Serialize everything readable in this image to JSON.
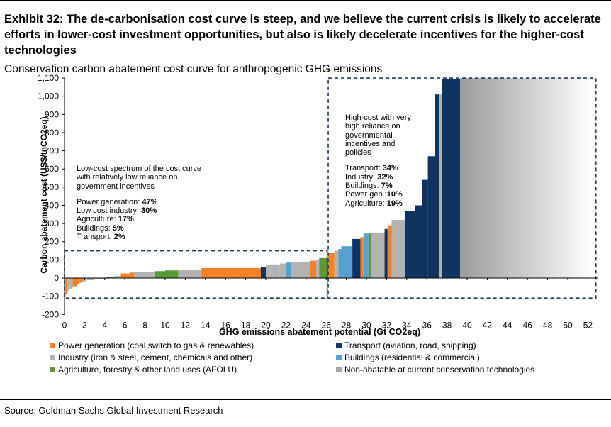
{
  "title": "Exhibit 32: The de-carbonisation cost curve is steep, and we believe the current crisis is likely to accelerate efforts in lower-cost investment opportunities, but also is likely decelerate incentives for the higher-cost technologies",
  "subtitle": "Conservation carbon abatement cost curve for anthropogenic GHG emissions",
  "source": "Source: Goldman Sachs Global Investment Research",
  "colors": {
    "power": "#F58025",
    "transport": "#0F3460",
    "industry": "#B3B3B3",
    "buildings": "#56A0D3",
    "agriculture": "#5A9A36",
    "nonabatable": "#A6A6A6"
  },
  "annotations": {
    "low": {
      "lines": [
        "Low-cost spectrum of the cost curve",
        "with relatively low reliance on",
        "government incentives"
      ],
      "items": [
        {
          "label": "Power generation: ",
          "value": "47%"
        },
        {
          "label": "Low cost industry: ",
          "value": "30%"
        },
        {
          "label": "Agriculture: ",
          "value": "17%"
        },
        {
          "label": "Buildings: ",
          "value": "5%"
        },
        {
          "label": "Transport: ",
          "value": "2%"
        }
      ]
    },
    "high": {
      "lines": [
        "High-cost with very",
        "high reliance on",
        "governmental",
        "incentives and",
        "policies"
      ],
      "items": [
        {
          "label": "Transport: ",
          "value": "34%"
        },
        {
          "label": "Industry: ",
          "value": "32%"
        },
        {
          "label": "Buildings: ",
          "value": "7%"
        },
        {
          "label": "Power gen.:",
          "value": "10%"
        },
        {
          "label": "Agriculture: ",
          "value": "19%"
        }
      ]
    }
  },
  "legend": [
    {
      "label": "Power generation (coal switch to gas & renewables)",
      "color": "#F58025"
    },
    {
      "label": "Transport (aviation, road, shipping)",
      "color": "#0F3460"
    },
    {
      "label": "Industry (iron & steel, cement, chemicals and other)",
      "color": "#B3B3B3"
    },
    {
      "label": "Buildings (residential & commercial)",
      "color": "#56A0D3"
    },
    {
      "label": "Agriculture, forestry & other land uses (AFOLU)",
      "color": "#5A9A36"
    },
    {
      "label": "Non-abatable at current conservation technologies",
      "color": "#A6A6A6"
    }
  ],
  "chart_data": {
    "type": "bar",
    "subtype": "marimekko cost curve (variable-width bars)",
    "xlabel": "GHG emissions abatement potential  (Gt CO2eq)",
    "ylabel": "Carbon abatement cost (US$/tnCO2eq)",
    "xlim": [
      0,
      53
    ],
    "ylim": [
      -200,
      1100
    ],
    "xticks": [
      0,
      2,
      4,
      6,
      8,
      10,
      12,
      14,
      16,
      18,
      20,
      22,
      24,
      26,
      28,
      30,
      32,
      34,
      36,
      38,
      40,
      42,
      44,
      46,
      48,
      50,
      52
    ],
    "yticks": [
      -200,
      -100,
      0,
      100,
      200,
      300,
      400,
      500,
      600,
      700,
      800,
      900,
      1000,
      1100
    ],
    "ytick_labels": [
      "-200",
      "-100",
      "0",
      "100",
      "200",
      "300",
      "400",
      "500",
      "600",
      "700",
      "800",
      "900",
      "1,000",
      "1,100"
    ],
    "grid": false,
    "legend_position": "bottom",
    "bars": [
      {
        "x0": 0.0,
        "x1": 0.1,
        "y": -110,
        "sector": "power"
      },
      {
        "x0": 0.1,
        "x1": 0.3,
        "y": -90,
        "sector": "power"
      },
      {
        "x0": 0.3,
        "x1": 0.5,
        "y": -70,
        "sector": "industry"
      },
      {
        "x0": 0.5,
        "x1": 0.8,
        "y": -60,
        "sector": "industry"
      },
      {
        "x0": 0.8,
        "x1": 1.2,
        "y": -45,
        "sector": "power"
      },
      {
        "x0": 1.2,
        "x1": 1.5,
        "y": -35,
        "sector": "power"
      },
      {
        "x0": 1.5,
        "x1": 1.8,
        "y": -25,
        "sector": "power"
      },
      {
        "x0": 1.8,
        "x1": 2.2,
        "y": -18,
        "sector": "industry"
      },
      {
        "x0": 2.2,
        "x1": 3.0,
        "y": -12,
        "sector": "industry"
      },
      {
        "x0": 3.0,
        "x1": 4.2,
        "y": -5,
        "sector": "industry"
      },
      {
        "x0": 4.2,
        "x1": 5.0,
        "y": 8,
        "sector": "agriculture"
      },
      {
        "x0": 5.0,
        "x1": 5.6,
        "y": 12,
        "sector": "industry"
      },
      {
        "x0": 5.6,
        "x1": 6.5,
        "y": 25,
        "sector": "power"
      },
      {
        "x0": 6.5,
        "x1": 6.9,
        "y": 30,
        "sector": "power"
      },
      {
        "x0": 6.9,
        "x1": 9.0,
        "y": 33,
        "sector": "industry"
      },
      {
        "x0": 9.0,
        "x1": 10.0,
        "y": 38,
        "sector": "agriculture"
      },
      {
        "x0": 10.0,
        "x1": 11.3,
        "y": 42,
        "sector": "agriculture"
      },
      {
        "x0": 11.3,
        "x1": 13.6,
        "y": 47,
        "sector": "industry"
      },
      {
        "x0": 13.6,
        "x1": 19.5,
        "y": 55,
        "sector": "power"
      },
      {
        "x0": 19.5,
        "x1": 20.0,
        "y": 62,
        "sector": "transport"
      },
      {
        "x0": 20.0,
        "x1": 20.5,
        "y": 70,
        "sector": "industry"
      },
      {
        "x0": 20.5,
        "x1": 21.4,
        "y": 75,
        "sector": "industry"
      },
      {
        "x0": 21.4,
        "x1": 22.0,
        "y": 80,
        "sector": "industry"
      },
      {
        "x0": 22.0,
        "x1": 22.5,
        "y": 85,
        "sector": "buildings"
      },
      {
        "x0": 22.5,
        "x1": 24.4,
        "y": 90,
        "sector": "industry"
      },
      {
        "x0": 24.4,
        "x1": 25.0,
        "y": 95,
        "sector": "power"
      },
      {
        "x0": 25.0,
        "x1": 25.3,
        "y": 100,
        "sector": "industry"
      },
      {
        "x0": 25.3,
        "x1": 26.2,
        "y": 110,
        "sector": "agriculture"
      },
      {
        "x0": 26.2,
        "x1": 26.8,
        "y": 140,
        "sector": "power"
      },
      {
        "x0": 26.8,
        "x1": 27.2,
        "y": 150,
        "sector": "industry"
      },
      {
        "x0": 27.2,
        "x1": 27.5,
        "y": 160,
        "sector": "buildings"
      },
      {
        "x0": 27.5,
        "x1": 28.6,
        "y": 175,
        "sector": "buildings"
      },
      {
        "x0": 28.6,
        "x1": 29.4,
        "y": 215,
        "sector": "transport"
      },
      {
        "x0": 29.4,
        "x1": 29.7,
        "y": 225,
        "sector": "power"
      },
      {
        "x0": 29.7,
        "x1": 30.2,
        "y": 245,
        "sector": "buildings"
      },
      {
        "x0": 30.2,
        "x1": 30.45,
        "y": 245,
        "sector": "agriculture"
      },
      {
        "x0": 30.45,
        "x1": 31.8,
        "y": 250,
        "sector": "industry"
      },
      {
        "x0": 31.8,
        "x1": 32.1,
        "y": 270,
        "sector": "transport"
      },
      {
        "x0": 32.1,
        "x1": 32.5,
        "y": 290,
        "sector": "power"
      },
      {
        "x0": 32.5,
        "x1": 33.8,
        "y": 320,
        "sector": "industry"
      },
      {
        "x0": 33.8,
        "x1": 34.8,
        "y": 370,
        "sector": "transport"
      },
      {
        "x0": 34.8,
        "x1": 35.5,
        "y": 400,
        "sector": "transport"
      },
      {
        "x0": 35.5,
        "x1": 36.1,
        "y": 540,
        "sector": "transport"
      },
      {
        "x0": 36.1,
        "x1": 36.8,
        "y": 670,
        "sector": "transport"
      },
      {
        "x0": 36.8,
        "x1": 37.2,
        "y": 1010,
        "sector": "transport"
      },
      {
        "x0": 37.2,
        "x1": 37.5,
        "y": 1010,
        "sector": "industry"
      },
      {
        "x0": 37.5,
        "x1": 39.3,
        "y": 1095,
        "sector": "transport"
      },
      {
        "x0": 39.3,
        "x1": 52.5,
        "y": 1100,
        "sector": "nonabatable"
      }
    ],
    "boxes": [
      {
        "x0": 0,
        "x1": 26.1,
        "y0": -110,
        "y1": 150
      },
      {
        "x0": 26.2,
        "x1": 52.8,
        "y0": -110,
        "y1": 1100
      }
    ]
  }
}
